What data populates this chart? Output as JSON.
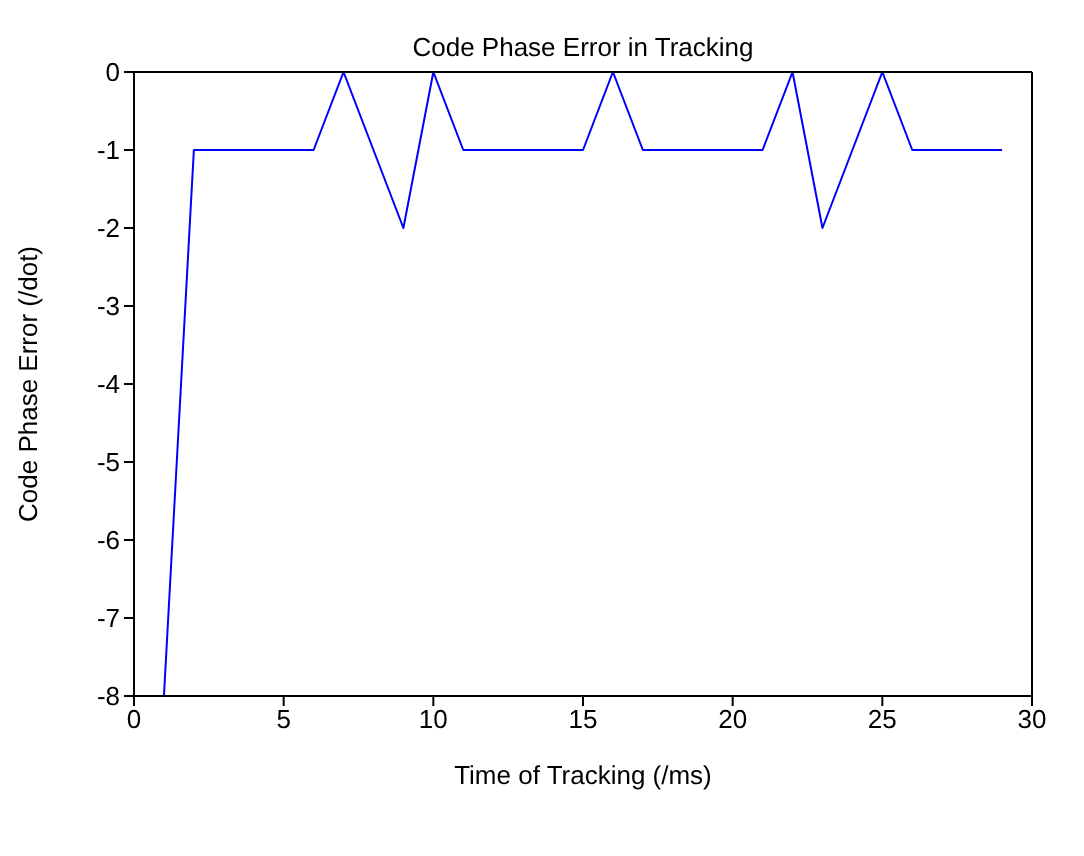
{
  "chart_data": {
    "type": "line",
    "title": "Code Phase Error in Tracking",
    "xlabel": "Time of Tracking (/ms)",
    "ylabel": "Code Phase Error (/dot)",
    "x": [
      1,
      2,
      3,
      4,
      5,
      6,
      7,
      8,
      9,
      10,
      11,
      12,
      13,
      14,
      15,
      16,
      17,
      18,
      19,
      20,
      21,
      22,
      23,
      24,
      25,
      26,
      27,
      28,
      29
    ],
    "series": [
      {
        "color": "#0000ff",
        "values": [
          -8,
          -1,
          -1,
          -1,
          -1,
          -1,
          0,
          -1,
          -2,
          0,
          -1,
          -1,
          -1,
          -1,
          -1,
          0,
          -1,
          -1,
          -1,
          -1,
          -1,
          0,
          -2,
          -1,
          0,
          -1,
          -1,
          -1,
          -1
        ]
      }
    ],
    "xlim": [
      0,
      30
    ],
    "xticks": [
      0,
      5,
      10,
      15,
      20,
      25,
      30
    ],
    "ylim": [
      -8,
      0
    ],
    "yticks": [
      -8,
      -7,
      -6,
      -5,
      -4,
      -3,
      -2,
      -1,
      0
    ],
    "grid": false,
    "legend": false,
    "marker": "none",
    "line_style": "solid"
  }
}
